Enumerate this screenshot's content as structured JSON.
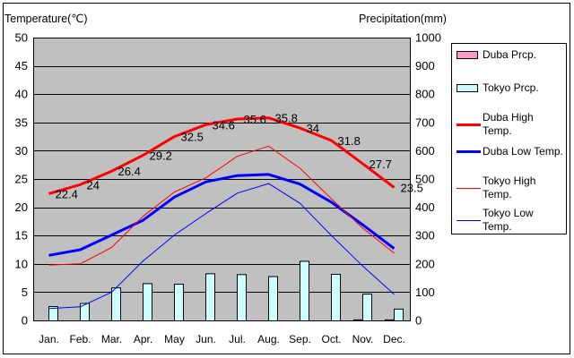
{
  "chart_data": {
    "type": "line",
    "categories": [
      "Jan.",
      "Feb.",
      "Mar.",
      "Apr.",
      "May",
      "Jun.",
      "Jul.",
      "Aug.",
      "Sep.",
      "Oct.",
      "Nov.",
      "Dec."
    ],
    "left_axis": {
      "label": "Temperature(℃)",
      "min": 0,
      "max": 50,
      "ticks": [
        0,
        5,
        10,
        15,
        20,
        25,
        30,
        35,
        40,
        45,
        50
      ]
    },
    "right_axis": {
      "label": "Precipitation(mm)",
      "min": 0,
      "max": 1000,
      "ticks": [
        0,
        100,
        200,
        300,
        400,
        500,
        600,
        700,
        800,
        900,
        1000
      ]
    },
    "grid": true,
    "legend_position": "right",
    "plot_background": "#C0C0C0",
    "series": [
      {
        "name": "Duba Prcp.",
        "type": "bar",
        "axis": "right",
        "color": "#FF99CC",
        "values": [
          0,
          0,
          0,
          0,
          0,
          0,
          0,
          0,
          0,
          0,
          2,
          2
        ]
      },
      {
        "name": "Tokyo Prcp.",
        "type": "bar",
        "axis": "right",
        "color": "#CCFFFF",
        "values": [
          49,
          60,
          115,
          130,
          128,
          165,
          162,
          155,
          209,
          163,
          93,
          40
        ]
      },
      {
        "name": "Duba High Temp.",
        "type": "line",
        "axis": "left",
        "color": "#FF0000",
        "data_labels": true,
        "values": [
          22.4,
          24,
          26.4,
          29.2,
          32.5,
          34.6,
          35.6,
          35.8,
          34,
          31.8,
          27.7,
          23.5
        ]
      },
      {
        "name": "Duba Low Temp.",
        "type": "line",
        "axis": "left",
        "color": "#0000FF",
        "values": [
          11.5,
          12.5,
          15.1,
          17.7,
          21.8,
          24.5,
          25.6,
          25.8,
          24.1,
          20.9,
          16.9,
          12.7
        ]
      },
      {
        "name": "Tokyo High Temp.",
        "type": "line",
        "axis": "left",
        "color": "#FF0000",
        "values": [
          9.8,
          10.0,
          12.9,
          18.4,
          22.7,
          25.2,
          29.0,
          30.8,
          26.9,
          21.5,
          16.3,
          11.9
        ]
      },
      {
        "name": "Tokyo Low Temp.",
        "type": "line",
        "axis": "left",
        "color": "#0000FF",
        "values": [
          2.1,
          2.4,
          5.0,
          10.5,
          15.1,
          18.9,
          22.5,
          24.2,
          20.7,
          15.0,
          9.6,
          4.6
        ]
      }
    ]
  }
}
